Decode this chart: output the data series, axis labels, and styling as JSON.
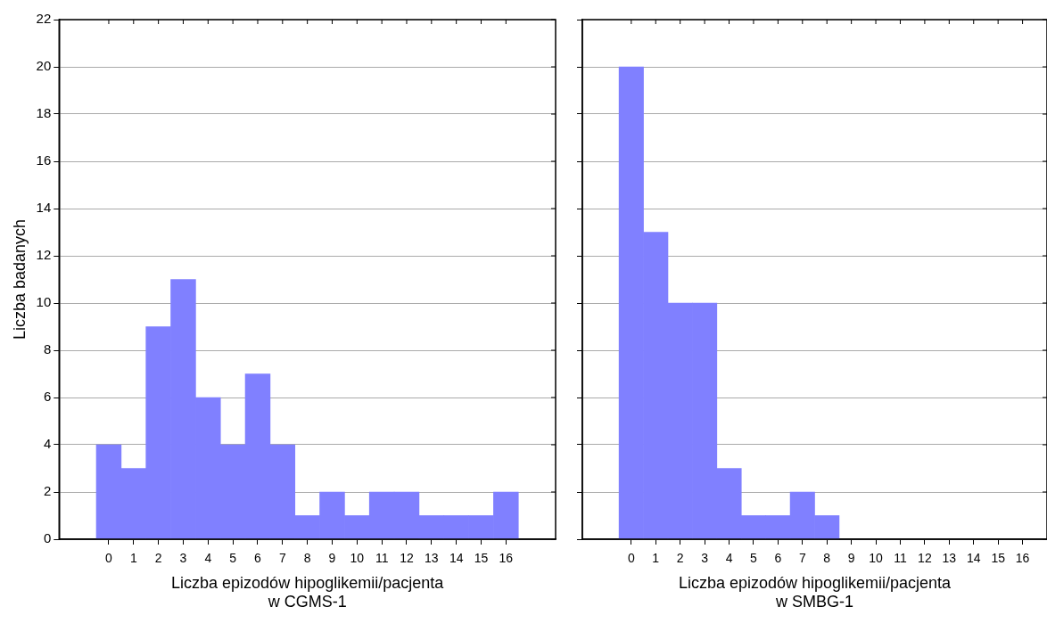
{
  "chart_data": [
    {
      "type": "histogram",
      "ylabel": "Liczba badanych",
      "xlabel": "Liczba epizodów hipoglikemii/pacjenta\nw CGMS-1",
      "bins": [
        -0.5,
        0.5,
        1.5,
        2.5,
        3.5,
        4.5,
        5.5,
        6.5,
        7.5,
        8.5,
        9.5,
        10.5,
        11.5,
        12.5,
        13.5,
        14.5,
        15.5,
        16.5
      ],
      "values": [
        4,
        3,
        9,
        11,
        6,
        4,
        7,
        4,
        1,
        2,
        1,
        2,
        2,
        1,
        1,
        1,
        2
      ],
      "color": "#8080ff",
      "xlim": [
        -2,
        18
      ],
      "xticks": [
        0,
        1,
        2,
        3,
        4,
        5,
        6,
        7,
        8,
        9,
        10,
        11,
        12,
        13,
        14,
        15,
        16
      ],
      "ylim": [
        0,
        22
      ],
      "yticks": [
        0,
        2,
        4,
        6,
        8,
        10,
        12,
        14,
        16,
        18,
        20,
        22
      ],
      "grid": "y"
    },
    {
      "type": "histogram",
      "xlabel": "Liczba epizodów hipoglikemii/pacjenta\nw SMBG-1",
      "bins": [
        -0.5,
        0.5,
        1.5,
        2.5,
        3.5,
        4.5,
        5.5,
        6.5,
        7.5,
        8.5
      ],
      "values": [
        20,
        13,
        10,
        10,
        3,
        1,
        1,
        2,
        1
      ],
      "color": "#8080ff",
      "xlim": [
        -2,
        17
      ],
      "xticks": [
        0,
        1,
        2,
        3,
        4,
        5,
        6,
        7,
        8,
        9,
        10,
        11,
        12,
        13,
        14,
        15,
        16
      ],
      "ylim": [
        0,
        22
      ],
      "yticks": [
        0,
        2,
        4,
        6,
        8,
        10,
        12,
        14,
        16,
        18,
        20,
        22
      ],
      "grid": "y",
      "tick_labels": "x"
    }
  ]
}
